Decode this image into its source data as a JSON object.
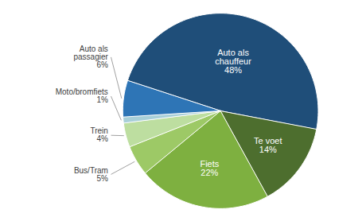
{
  "chart_data": {
    "type": "pie",
    "categories": [
      "Auto als\nchauffeur",
      "Te voet",
      "Fiets",
      "Bus/Tram",
      "Trein",
      "Moto/bromfiets",
      "Auto als\npassagier"
    ],
    "values": [
      48,
      14,
      22,
      5,
      4,
      1,
      6
    ],
    "value_labels": [
      "48%",
      "14%",
      "22%",
      "5%",
      "4%",
      "1%",
      "6%"
    ],
    "colors": [
      "#1f4e79",
      "#4d6e2e",
      "#7eb040",
      "#9dc966",
      "#bddea0",
      "#a8cfd8",
      "#2e75b6"
    ],
    "data_labels": true
  }
}
